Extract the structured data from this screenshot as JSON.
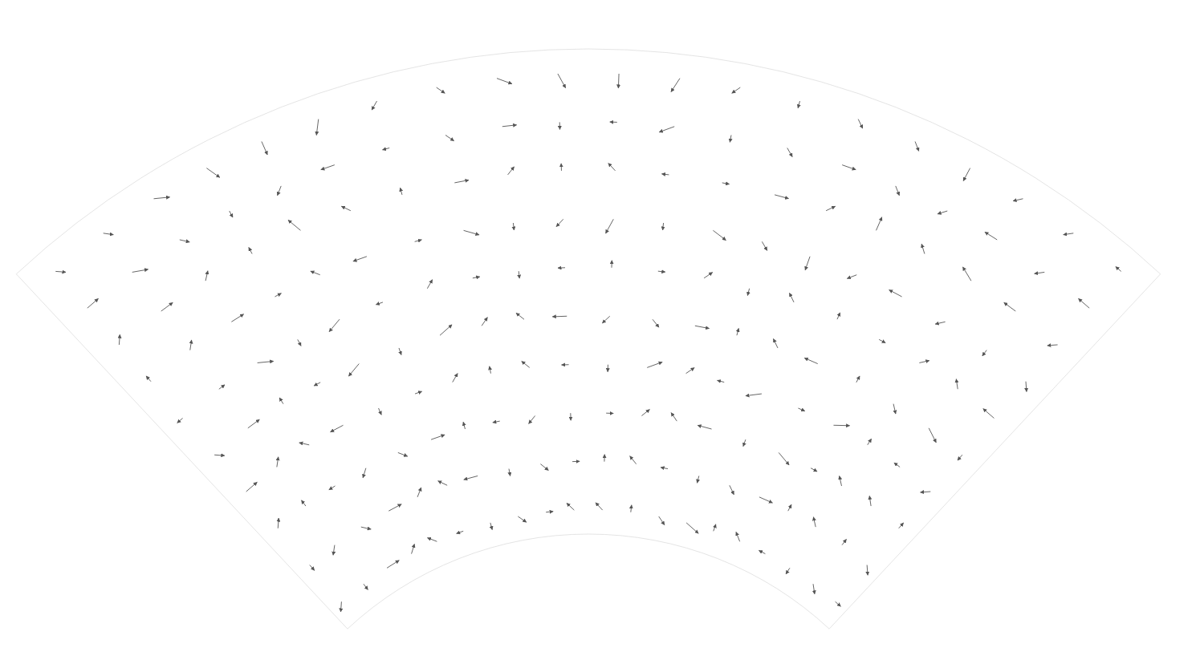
{
  "chart_data": {
    "type": "quiver",
    "color": "#555555",
    "tick_labels": false,
    "xlim": [
      -1,
      1
    ],
    "ylim": [
      0,
      1
    ],
    "x": [
      -0.95,
      -0.85,
      -0.75,
      -0.65,
      -0.55,
      -0.45,
      -0.35,
      -0.25,
      -0.15,
      -0.05,
      0.05,
      0.15,
      0.25,
      0.35,
      0.45,
      0.55,
      0.65,
      0.75,
      0.85,
      0.95
    ],
    "y": [
      0.05,
      0.15,
      0.25,
      0.35,
      0.45,
      0.55,
      0.65,
      0.75,
      0.85,
      0.95
    ],
    "u": [
      [
        -1,
        0,
        2,
        1,
        -1,
        -1,
        0,
        1,
        1,
        -1,
        -1,
        0,
        1,
        2,
        0,
        -1,
        -1,
        0,
        1,
        1
      ],
      [
        0,
        -1,
        1,
        2,
        1,
        -1,
        -2,
        0,
        1,
        1,
        0,
        -1,
        -1,
        0,
        1,
        2,
        0,
        -1,
        0,
        1
      ],
      [
        1,
        0,
        -1,
        -1,
        1,
        2,
        0,
        -1,
        -1,
        0,
        1,
        1,
        -1,
        -2,
        0,
        2,
        1,
        -1,
        -1,
        0
      ],
      [
        2,
        1,
        -1,
        -2,
        0,
        1,
        1,
        0,
        -1,
        -1,
        0,
        2,
        1,
        -1,
        -2,
        1,
        2,
        0,
        -1,
        -1
      ],
      [
        1,
        2,
        0,
        -1,
        -2,
        0,
        2,
        1,
        -1,
        -2,
        -1,
        1,
        2,
        0,
        -1,
        -2,
        0,
        1,
        2,
        0
      ],
      [
        -1,
        1,
        2,
        0,
        -2,
        -1,
        1,
        1,
        0,
        -1,
        0,
        1,
        1,
        0,
        -1,
        0,
        1,
        1,
        -1,
        -2
      ],
      [
        0,
        1,
        2,
        1,
        -1,
        -2,
        1,
        2,
        0,
        -1,
        -1,
        0,
        2,
        1,
        0,
        -1,
        -2,
        -1,
        0,
        1
      ],
      [
        1,
        2,
        1,
        0,
        -1,
        -1,
        0,
        2,
        1,
        0,
        -1,
        -1,
        1,
        2,
        1,
        0,
        -1,
        -2,
        -2,
        -1
      ],
      [
        2,
        2,
        1,
        0,
        -1,
        -2,
        -1,
        1,
        2,
        0,
        -1,
        -2,
        0,
        1,
        2,
        1,
        -1,
        -2,
        -1,
        -2
      ],
      [
        1,
        1,
        2,
        1,
        0,
        -1,
        -1,
        1,
        2,
        1,
        0,
        -1,
        -1,
        0,
        1,
        1,
        0,
        -1,
        -1,
        -1
      ]
    ],
    "v": [
      [
        -1,
        -1,
        0,
        1,
        1,
        0,
        -1,
        -1,
        0,
        1,
        1,
        1,
        -1,
        -1,
        1,
        1,
        0,
        -1,
        -1,
        0
      ],
      [
        -1,
        -1,
        -1,
        0,
        1,
        1,
        0,
        -1,
        -1,
        0,
        1,
        1,
        0,
        -1,
        -1,
        0,
        1,
        1,
        1,
        -1
      ],
      [
        1,
        1,
        0,
        -1,
        -1,
        0,
        1,
        0,
        -1,
        -1,
        0,
        1,
        1,
        0,
        -1,
        -1,
        0,
        1,
        1,
        1
      ],
      [
        0,
        1,
        1,
        0,
        -1,
        0,
        1,
        1,
        1,
        0,
        -1,
        1,
        1,
        0,
        -1,
        0,
        1,
        1,
        0,
        -1
      ],
      [
        -1,
        0,
        1,
        0,
        -1,
        -1,
        1,
        1,
        1,
        0,
        -1,
        -1,
        0,
        1,
        1,
        0,
        1,
        -1,
        -1,
        -1
      ],
      [
        0,
        0,
        -1,
        -1,
        -1,
        0,
        1,
        0,
        -1,
        0,
        1,
        0,
        1,
        -1,
        1,
        1,
        0,
        1,
        1,
        0
      ],
      [
        1,
        1,
        0,
        0,
        1,
        0,
        0,
        -1,
        -1,
        -1,
        -2,
        -1,
        -1,
        -1,
        -2,
        -1,
        0,
        -1,
        -1,
        -1
      ],
      [
        1,
        0,
        1,
        1,
        2,
        1,
        1,
        0,
        1,
        1,
        1,
        0,
        0,
        0,
        1,
        2,
        1,
        1,
        0,
        -1
      ],
      [
        0,
        -1,
        -1,
        -1,
        -1,
        0,
        0,
        -1,
        0,
        -1,
        0,
        -1,
        -1,
        -1,
        0,
        -1,
        -1,
        0,
        -1,
        0
      ],
      [
        -1,
        -1,
        -1,
        -2,
        -2,
        -2,
        -1,
        -1,
        -1,
        -2,
        -2,
        -2,
        -1,
        -1,
        -1,
        -1,
        -2,
        -1,
        -1,
        0
      ]
    ]
  }
}
